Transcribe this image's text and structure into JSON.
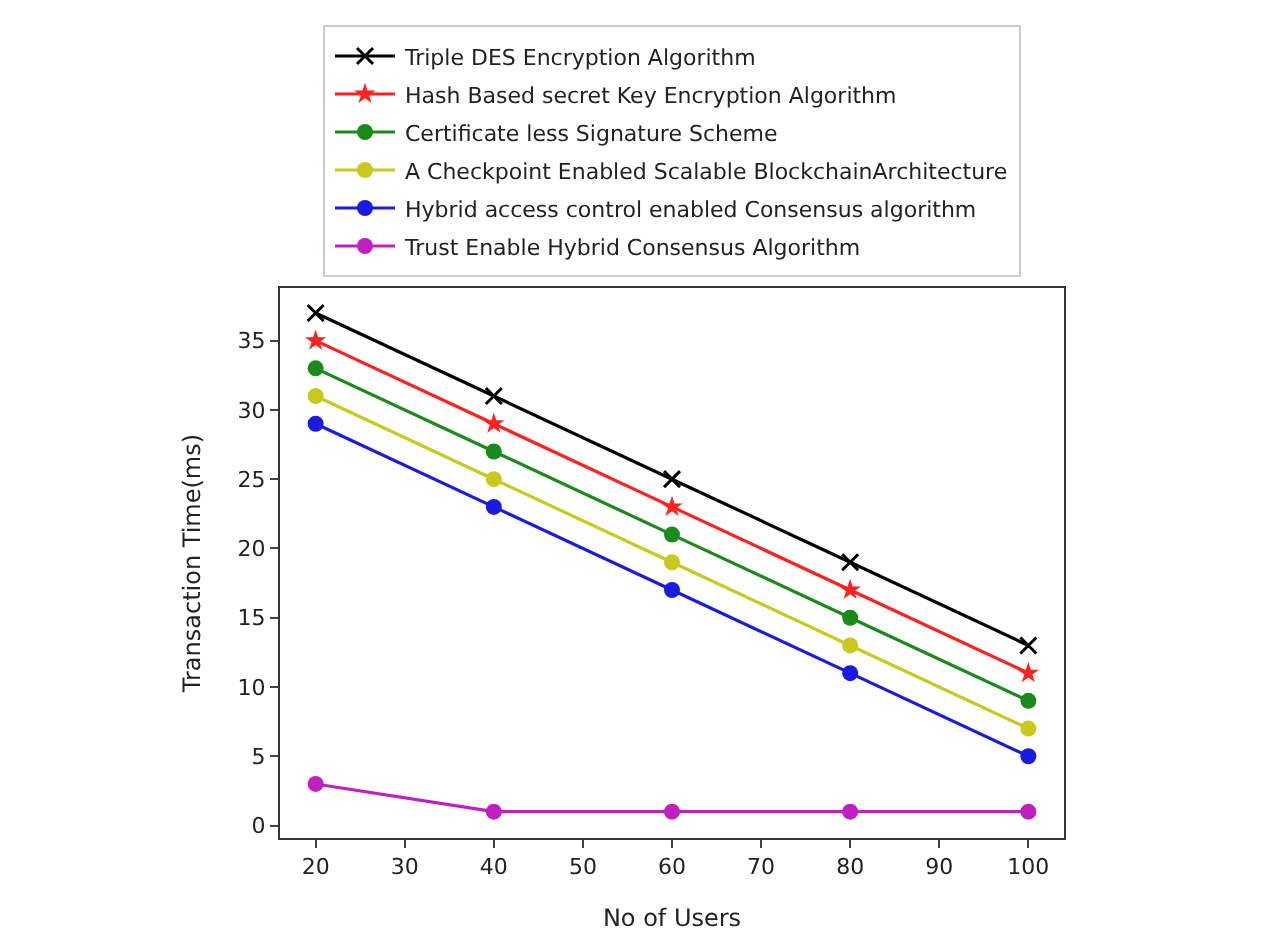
{
  "chart_data": {
    "type": "line",
    "xlabel": "No of Users",
    "ylabel": "Transaction Time(ms)",
    "x": [
      20,
      40,
      60,
      80,
      100
    ],
    "series": [
      {
        "name": "Triple DES Encryption Algorithm",
        "color": "#000000",
        "marker": "cross",
        "values": [
          37,
          31,
          25,
          19,
          13
        ]
      },
      {
        "name": "Hash Based secret Key Encryption Algorithm",
        "color": "#ff2020",
        "marker": "star",
        "values": [
          35,
          29,
          23,
          17,
          11
        ]
      },
      {
        "name": "Certificate less Signature Scheme",
        "color": "#1a8a1a",
        "marker": "circle",
        "values": [
          33,
          27,
          21,
          15,
          9
        ]
      },
      {
        "name": "A Checkpoint Enabled Scalable BlockchainArchitecture",
        "color": "#c8c81e",
        "marker": "circle",
        "values": [
          31,
          25,
          19,
          13,
          7
        ]
      },
      {
        "name": "Hybrid access control enabled Consensus algorithm",
        "color": "#1a1ae0",
        "marker": "circle",
        "values": [
          29,
          23,
          17,
          11,
          5
        ]
      },
      {
        "name": "Trust Enable Hybrid Consensus Algorithm",
        "color": "#c020c0",
        "marker": "circle",
        "values": [
          3,
          1,
          1,
          1,
          1
        ]
      }
    ],
    "xlim": [
      16,
      104
    ],
    "xticks": [
      20,
      30,
      40,
      50,
      60,
      70,
      80,
      90,
      100
    ],
    "ylim": [
      -0.9,
      38.8
    ],
    "yticks": [
      0,
      5,
      10,
      15,
      20,
      25,
      30,
      35
    ],
    "grid": false,
    "legend": "top",
    "line_style": "solid"
  }
}
